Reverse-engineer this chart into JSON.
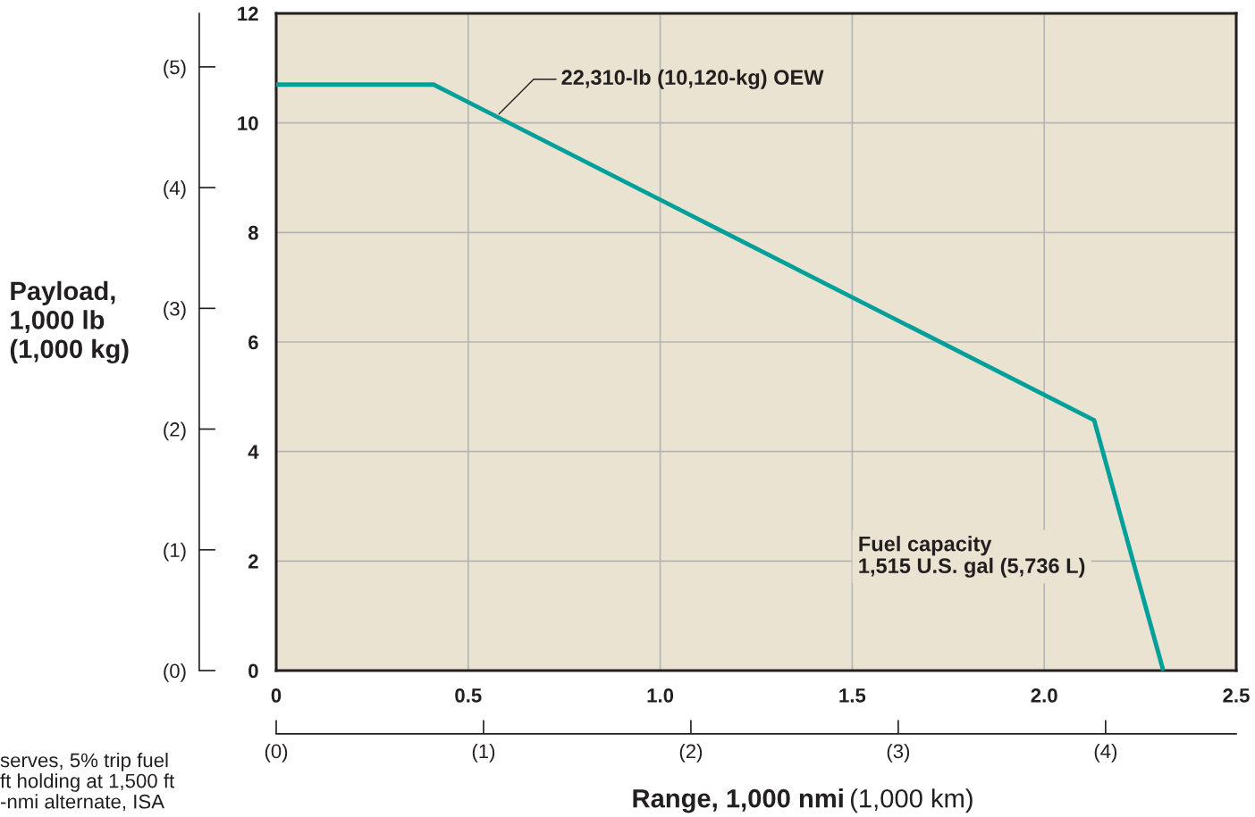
{
  "chart_data": {
    "type": "line",
    "ylabel": "Payload,\n1,000 lb\n(1,000 kg)",
    "xlabel": "Range, 1,000 nmi",
    "x2label": "(1,000 km)",
    "x": [
      0,
      0.41,
      2.13,
      2.31
    ],
    "series": [
      {
        "color": "#00a09a",
        "axis": "y2",
        "values": [
          10.7,
          10.7,
          4.57,
          0
        ]
      }
    ],
    "xlim": [
      0,
      2.5
    ],
    "xticks": [
      {
        "value": 0,
        "label": "0"
      },
      0.5,
      {
        "value": 1,
        "label": "1.0"
      },
      1.5,
      {
        "value": 2,
        "label": "2.0"
      },
      2.5
    ],
    "y2lim": [
      0,
      12
    ],
    "y2ticks": [
      0,
      2,
      4,
      6,
      8,
      10,
      12
    ],
    "ylim": [
      0,
      5.443
    ],
    "yticks": [
      {
        "value": 0,
        "label": "(0)"
      },
      {
        "value": 1,
        "label": "(1)"
      },
      {
        "value": 2,
        "label": "(2)"
      },
      {
        "value": 3,
        "label": "(3)"
      },
      {
        "value": 4,
        "label": "(4)"
      },
      {
        "value": 5,
        "label": "(5)"
      }
    ],
    "x2lim": [
      0,
      4.63
    ],
    "x2ticks": [
      {
        "value": 0,
        "label": "(0)"
      },
      {
        "value": 1,
        "label": "(1)"
      },
      {
        "value": 2,
        "label": "(2)"
      },
      {
        "value": 3,
        "label": "(3)"
      },
      {
        "value": 4,
        "label": "(4)"
      }
    ],
    "grid": true,
    "annotations": [
      {
        "text": "22,310-lb (10,120-kg) OEW",
        "x": 0.58,
        "y": 4.61
      },
      "Fuel capacity\n1,515 U.S. gal (5,736 L)",
      "serves, 5% trip fuel\nft holding at 1,500 ft\n-nmi alternate, ISA"
    ]
  }
}
